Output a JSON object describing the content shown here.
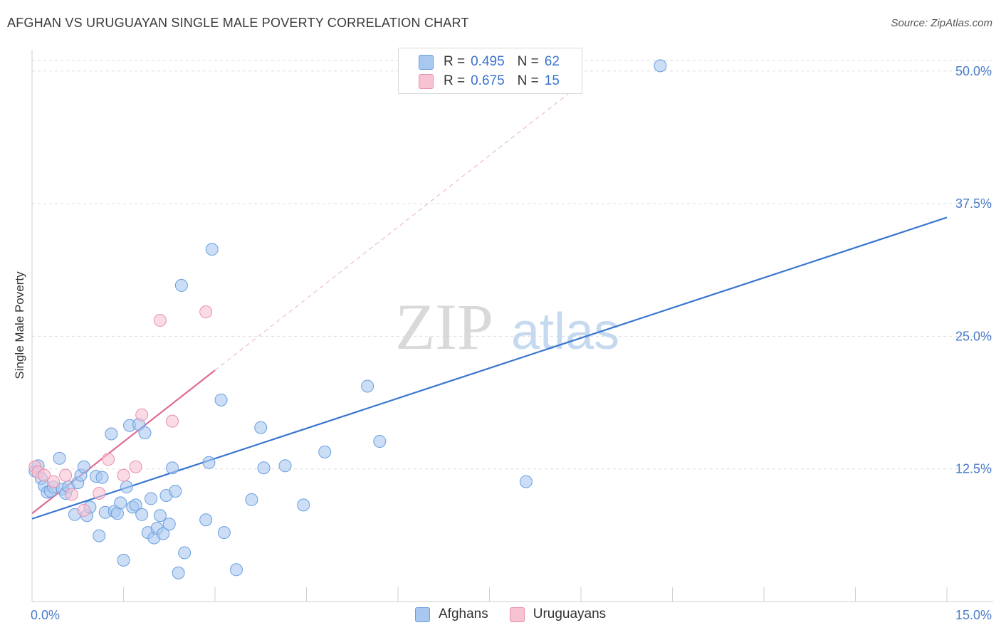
{
  "title": "AFGHAN VS URUGUAYAN SINGLE MALE POVERTY CORRELATION CHART",
  "source": "Source: ZipAtlas.com",
  "watermark": {
    "zip": "ZIP",
    "atlas": "atlas"
  },
  "legend_top": [
    {
      "r_label": "R =",
      "r_value": "0.495",
      "n_label": "N =",
      "n_value": "62",
      "color": "#a9c8f0",
      "border": "#6a9ee0"
    },
    {
      "r_label": "R =",
      "r_value": "0.675",
      "n_label": "N =",
      "n_value": "15",
      "color": "#f7c3d3",
      "border": "#ea8fac"
    }
  ],
  "legend_bottom": [
    {
      "label": "Afghans",
      "color": "#a9c8f0",
      "border": "#6a9ee0"
    },
    {
      "label": "Uruguayans",
      "color": "#f7c3d3",
      "border": "#ea8fac"
    }
  ],
  "chart_data": {
    "type": "scatter",
    "xlabel": "",
    "ylabel": "Single Male Poverty",
    "xlim": [
      0,
      15
    ],
    "ylim": [
      0,
      52
    ],
    "x_tick_labels": [
      "0.0%",
      "15.0%"
    ],
    "y_ticks": [
      12.5,
      25.0,
      37.5,
      50.0
    ],
    "y_tick_labels": [
      "12.5%",
      "25.0%",
      "37.5%",
      "50.0%"
    ],
    "grid": "horizontal dashed",
    "legend": "top-center",
    "series": [
      {
        "name": "Afghans",
        "color": "#6a9ee0",
        "fill": "#a9c8f0",
        "trend": {
          "x": [
            0,
            15
          ],
          "y": [
            7.8,
            36.2
          ],
          "color": "#3a76d0",
          "style": "solid"
        },
        "points": [
          [
            0.05,
            12.3
          ],
          [
            0.1,
            12.8
          ],
          [
            0.15,
            11.6
          ],
          [
            0.2,
            10.9
          ],
          [
            0.25,
            10.3
          ],
          [
            0.3,
            10.4
          ],
          [
            0.35,
            10.8
          ],
          [
            0.45,
            13.5
          ],
          [
            0.5,
            10.6
          ],
          [
            0.55,
            10.2
          ],
          [
            0.6,
            10.8
          ],
          [
            0.7,
            8.2
          ],
          [
            0.75,
            11.2
          ],
          [
            0.8,
            11.9
          ],
          [
            0.85,
            12.7
          ],
          [
            0.9,
            8.1
          ],
          [
            0.95,
            8.9
          ],
          [
            1.05,
            11.8
          ],
          [
            1.1,
            6.2
          ],
          [
            1.15,
            11.7
          ],
          [
            1.2,
            8.4
          ],
          [
            1.3,
            15.8
          ],
          [
            1.35,
            8.5
          ],
          [
            1.4,
            8.3
          ],
          [
            1.45,
            9.3
          ],
          [
            1.5,
            3.9
          ],
          [
            1.55,
            10.8
          ],
          [
            1.6,
            16.6
          ],
          [
            1.65,
            8.9
          ],
          [
            1.7,
            9.1
          ],
          [
            1.75,
            16.7
          ],
          [
            1.8,
            8.2
          ],
          [
            1.85,
            15.9
          ],
          [
            1.9,
            6.5
          ],
          [
            1.95,
            9.7
          ],
          [
            2.0,
            6.0
          ],
          [
            2.05,
            6.9
          ],
          [
            2.1,
            8.1
          ],
          [
            2.15,
            6.4
          ],
          [
            2.2,
            10.0
          ],
          [
            2.25,
            7.3
          ],
          [
            2.3,
            12.6
          ],
          [
            2.35,
            10.4
          ],
          [
            2.4,
            2.7
          ],
          [
            2.45,
            29.8
          ],
          [
            2.5,
            4.6
          ],
          [
            2.85,
            7.7
          ],
          [
            2.9,
            13.1
          ],
          [
            2.95,
            33.2
          ],
          [
            3.1,
            19.0
          ],
          [
            3.15,
            6.5
          ],
          [
            3.35,
            3.0
          ],
          [
            3.6,
            9.6
          ],
          [
            3.75,
            16.4
          ],
          [
            3.8,
            12.6
          ],
          [
            4.15,
            12.8
          ],
          [
            4.45,
            9.1
          ],
          [
            4.8,
            14.1
          ],
          [
            5.5,
            20.3
          ],
          [
            5.7,
            15.1
          ],
          [
            8.1,
            11.3
          ],
          [
            10.3,
            50.5
          ]
        ]
      },
      {
        "name": "Uruguayans",
        "color": "#ea8fac",
        "fill": "#f7c3d3",
        "trend": {
          "x": [
            0,
            3.0
          ],
          "y": [
            8.3,
            21.8
          ],
          "color": "#e06a92",
          "style": "solid",
          "extend_to_x": 9.0,
          "extend_to_y": 48.8
        },
        "points": [
          [
            0.05,
            12.7
          ],
          [
            0.1,
            12.2
          ],
          [
            0.2,
            11.9
          ],
          [
            0.35,
            11.3
          ],
          [
            0.55,
            11.9
          ],
          [
            0.65,
            10.1
          ],
          [
            0.85,
            8.6
          ],
          [
            1.1,
            10.2
          ],
          [
            1.25,
            13.4
          ],
          [
            1.5,
            11.9
          ],
          [
            1.7,
            12.7
          ],
          [
            1.8,
            17.6
          ],
          [
            2.1,
            26.5
          ],
          [
            2.3,
            17.0
          ],
          [
            2.85,
            27.3
          ]
        ]
      }
    ]
  }
}
